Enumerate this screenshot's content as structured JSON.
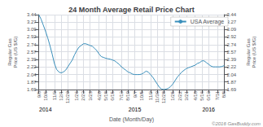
{
  "chart_data": {
    "type": "line",
    "title": "24 Month Average Retail Price Chart",
    "xlabel": "Date (Month/Day)",
    "ylabel": "Regular Gas\nPrice (US $/G)",
    "y2label": "Regular Gas\nPrice (US $/G)",
    "categories": [
      "9/8",
      null,
      null,
      "10/6",
      null,
      null,
      null,
      "11/3",
      null,
      null,
      "12/1",
      null,
      null,
      "12/29",
      null,
      null,
      null,
      "1/26",
      null,
      null,
      "2/23",
      null,
      null,
      "3/23",
      null,
      null,
      null,
      "4/20",
      null,
      null,
      "5/18",
      null,
      null,
      "6/15",
      null,
      null,
      null,
      "7/13",
      null,
      null,
      "8/10",
      null,
      null,
      "9/7",
      null,
      null,
      "10/5",
      null,
      null,
      null,
      "11/2",
      null,
      null,
      "11/30",
      null,
      null,
      "12/28",
      null,
      null,
      null,
      "1/25",
      null,
      null,
      "2/22",
      null,
      null,
      "3/21",
      null,
      null,
      null,
      "4/18",
      null,
      null,
      "5/16",
      null,
      null,
      "6/13",
      null,
      null,
      null,
      "7/11",
      null,
      null,
      "8/8"
    ],
    "series": [
      {
        "name": "USA Average",
        "color": "#3a8fbb",
        "values": [
          3.44,
          3.34,
          3.2,
          3.06,
          2.9,
          2.72,
          2.52,
          2.3,
          2.16,
          2.1,
          2.08,
          2.1,
          2.14,
          2.22,
          2.3,
          2.38,
          2.5,
          2.6,
          2.68,
          2.72,
          2.76,
          2.76,
          2.74,
          2.72,
          2.7,
          2.65,
          2.6,
          2.52,
          2.46,
          2.44,
          2.42,
          2.41,
          2.4,
          2.38,
          2.36,
          2.32,
          2.28,
          2.22,
          2.18,
          2.14,
          2.1,
          2.08,
          2.05,
          2.04,
          2.04,
          2.04,
          2.05,
          2.08,
          2.12,
          2.1,
          2.04,
          1.98,
          1.9,
          1.82,
          1.74,
          1.7,
          1.69,
          1.7,
          1.72,
          1.76,
          1.82,
          1.9,
          1.98,
          2.04,
          2.1,
          2.14,
          2.18,
          2.2,
          2.22,
          2.24,
          2.26,
          2.3,
          2.32,
          2.36,
          2.36,
          2.32,
          2.28,
          2.24,
          2.22,
          2.22,
          2.22,
          2.22,
          2.23,
          2.25
        ]
      }
    ],
    "ylim": [
      1.69,
      3.44
    ],
    "yticks": [
      1.69,
      1.87,
      2.04,
      2.22,
      2.39,
      2.57,
      2.74,
      2.92,
      3.09,
      3.27,
      3.44
    ],
    "y2lim": [
      1.69,
      3.44
    ],
    "y2ticks": [
      1.69,
      1.87,
      2.04,
      2.22,
      2.39,
      2.57,
      2.74,
      2.92,
      3.09,
      3.27,
      3.44
    ],
    "grid": true,
    "legend": "upper right",
    "annotations": [
      {
        "text": "2014",
        "category": "10/6"
      },
      {
        "text": "2015",
        "category": "9/7"
      },
      {
        "text": "2016",
        "category": "6/13"
      }
    ],
    "watermark": "©2016 GasBuddy.com"
  }
}
